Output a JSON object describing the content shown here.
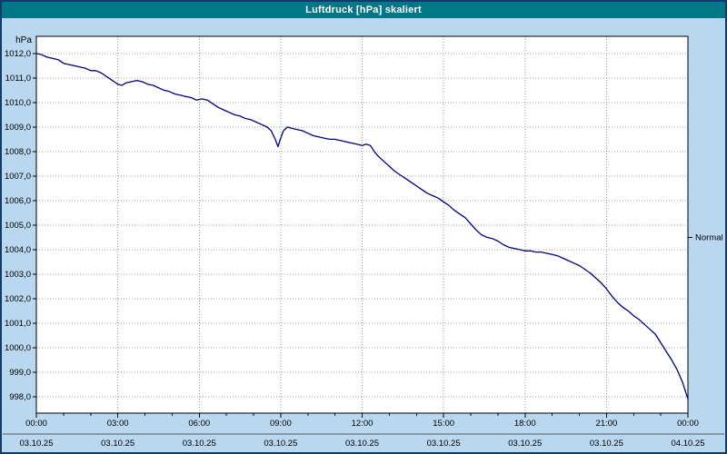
{
  "window": {
    "title": "Luftdruck [hPa] skaliert"
  },
  "colors": {
    "window_bg": "#b9d7ee",
    "border": "#123a6d",
    "titlebar_bg": "#007887",
    "titlebar_text": "#ffffff",
    "plot_bg": "#ffffff",
    "plot_border": "#000000",
    "grid": "#9b9b9b",
    "axis_text": "#000000",
    "line": "#000080"
  },
  "chart_data": {
    "type": "line",
    "title": "Luftdruck [hPa] skaliert",
    "grid": true,
    "y_axis": {
      "label": "hPa",
      "ylim": [
        997.33,
        1012.7
      ],
      "ticks": [
        {
          "value": 1012,
          "label": "1012,0"
        },
        {
          "value": 1011,
          "label": "1011,0"
        },
        {
          "value": 1010,
          "label": "1010,0"
        },
        {
          "value": 1009,
          "label": "1009,0"
        },
        {
          "value": 1008,
          "label": "1008,0"
        },
        {
          "value": 1007,
          "label": "1007,0"
        },
        {
          "value": 1006,
          "label": "1006,0"
        },
        {
          "value": 1005,
          "label": "1005,0"
        },
        {
          "value": 1004,
          "label": "1004,0"
        },
        {
          "value": 1003,
          "label": "1003,0"
        },
        {
          "value": 1002,
          "label": "1002,0"
        },
        {
          "value": 1001,
          "label": "1001,0"
        },
        {
          "value": 1000,
          "label": "1000,0"
        },
        {
          "value": 999,
          "label": "999,0"
        },
        {
          "value": 998,
          "label": "998,0"
        }
      ]
    },
    "x_axis": {
      "xlim_hours": [
        0,
        24
      ],
      "minor_step_hours": 1,
      "major_ticks": [
        {
          "hour": 0,
          "time": "00:00",
          "date": "03.10.25"
        },
        {
          "hour": 3,
          "time": "03:00",
          "date": "03.10.25"
        },
        {
          "hour": 6,
          "time": "06:00",
          "date": "03.10.25"
        },
        {
          "hour": 9,
          "time": "09:00",
          "date": "03.10.25"
        },
        {
          "hour": 12,
          "time": "12:00",
          "date": "03.10.25"
        },
        {
          "hour": 15,
          "time": "15:00",
          "date": "03.10.25"
        },
        {
          "hour": 18,
          "time": "18:00",
          "date": "03.10.25"
        },
        {
          "hour": 21,
          "time": "21:00",
          "date": "03.10.25"
        },
        {
          "hour": 24,
          "time": "00:00",
          "date": "04.10.25"
        }
      ]
    },
    "series": [
      {
        "name": "Luftdruck",
        "color": "#000080",
        "points": [
          [
            0.0,
            1012.0
          ],
          [
            0.2,
            1011.95
          ],
          [
            0.4,
            1011.85
          ],
          [
            0.6,
            1011.8
          ],
          [
            0.8,
            1011.75
          ],
          [
            1.0,
            1011.6
          ],
          [
            1.2,
            1011.55
          ],
          [
            1.4,
            1011.5
          ],
          [
            1.6,
            1011.45
          ],
          [
            1.8,
            1011.4
          ],
          [
            2.0,
            1011.3
          ],
          [
            2.2,
            1011.3
          ],
          [
            2.4,
            1011.2
          ],
          [
            2.6,
            1011.05
          ],
          [
            2.8,
            1010.9
          ],
          [
            3.0,
            1010.75
          ],
          [
            3.15,
            1010.7
          ],
          [
            3.3,
            1010.8
          ],
          [
            3.5,
            1010.85
          ],
          [
            3.7,
            1010.9
          ],
          [
            3.9,
            1010.85
          ],
          [
            4.1,
            1010.75
          ],
          [
            4.3,
            1010.7
          ],
          [
            4.5,
            1010.6
          ],
          [
            4.7,
            1010.5
          ],
          [
            4.9,
            1010.45
          ],
          [
            5.1,
            1010.35
          ],
          [
            5.3,
            1010.3
          ],
          [
            5.5,
            1010.25
          ],
          [
            5.7,
            1010.2
          ],
          [
            5.9,
            1010.1
          ],
          [
            6.1,
            1010.15
          ],
          [
            6.3,
            1010.1
          ],
          [
            6.5,
            1009.95
          ],
          [
            6.7,
            1009.8
          ],
          [
            6.9,
            1009.7
          ],
          [
            7.1,
            1009.6
          ],
          [
            7.3,
            1009.5
          ],
          [
            7.5,
            1009.45
          ],
          [
            7.7,
            1009.35
          ],
          [
            7.9,
            1009.3
          ],
          [
            8.1,
            1009.2
          ],
          [
            8.3,
            1009.1
          ],
          [
            8.5,
            1009.0
          ],
          [
            8.65,
            1008.85
          ],
          [
            8.8,
            1008.5
          ],
          [
            8.9,
            1008.2
          ],
          [
            9.0,
            1008.55
          ],
          [
            9.1,
            1008.85
          ],
          [
            9.25,
            1009.0
          ],
          [
            9.4,
            1008.95
          ],
          [
            9.6,
            1008.9
          ],
          [
            9.8,
            1008.85
          ],
          [
            10.0,
            1008.75
          ],
          [
            10.2,
            1008.65
          ],
          [
            10.4,
            1008.6
          ],
          [
            10.6,
            1008.55
          ],
          [
            10.8,
            1008.5
          ],
          [
            11.0,
            1008.5
          ],
          [
            11.2,
            1008.45
          ],
          [
            11.4,
            1008.4
          ],
          [
            11.6,
            1008.35
          ],
          [
            11.8,
            1008.3
          ],
          [
            12.0,
            1008.25
          ],
          [
            12.15,
            1008.3
          ],
          [
            12.3,
            1008.25
          ],
          [
            12.45,
            1008.0
          ],
          [
            12.6,
            1007.8
          ],
          [
            12.8,
            1007.6
          ],
          [
            13.0,
            1007.4
          ],
          [
            13.2,
            1007.2
          ],
          [
            13.4,
            1007.05
          ],
          [
            13.6,
            1006.9
          ],
          [
            13.8,
            1006.75
          ],
          [
            14.0,
            1006.6
          ],
          [
            14.2,
            1006.45
          ],
          [
            14.4,
            1006.3
          ],
          [
            14.6,
            1006.2
          ],
          [
            14.8,
            1006.1
          ],
          [
            15.0,
            1005.95
          ],
          [
            15.2,
            1005.8
          ],
          [
            15.4,
            1005.6
          ],
          [
            15.6,
            1005.45
          ],
          [
            15.8,
            1005.3
          ],
          [
            16.0,
            1005.05
          ],
          [
            16.2,
            1004.8
          ],
          [
            16.4,
            1004.6
          ],
          [
            16.6,
            1004.5
          ],
          [
            16.8,
            1004.45
          ],
          [
            17.0,
            1004.35
          ],
          [
            17.2,
            1004.2
          ],
          [
            17.4,
            1004.1
          ],
          [
            17.6,
            1004.05
          ],
          [
            17.8,
            1004.0
          ],
          [
            18.0,
            1003.95
          ],
          [
            18.2,
            1003.95
          ],
          [
            18.4,
            1003.9
          ],
          [
            18.6,
            1003.9
          ],
          [
            18.8,
            1003.85
          ],
          [
            19.0,
            1003.8
          ],
          [
            19.2,
            1003.75
          ],
          [
            19.4,
            1003.65
          ],
          [
            19.6,
            1003.55
          ],
          [
            19.8,
            1003.45
          ],
          [
            20.0,
            1003.35
          ],
          [
            20.2,
            1003.2
          ],
          [
            20.4,
            1003.05
          ],
          [
            20.6,
            1002.85
          ],
          [
            20.8,
            1002.65
          ],
          [
            21.0,
            1002.4
          ],
          [
            21.2,
            1002.1
          ],
          [
            21.4,
            1001.85
          ],
          [
            21.6,
            1001.65
          ],
          [
            21.8,
            1001.5
          ],
          [
            22.0,
            1001.3
          ],
          [
            22.2,
            1001.15
          ],
          [
            22.4,
            1000.95
          ],
          [
            22.6,
            1000.75
          ],
          [
            22.8,
            1000.55
          ],
          [
            23.0,
            1000.2
          ],
          [
            23.2,
            999.85
          ],
          [
            23.4,
            999.5
          ],
          [
            23.6,
            999.1
          ],
          [
            23.8,
            998.6
          ],
          [
            23.9,
            998.25
          ],
          [
            24.0,
            997.9
          ]
        ]
      }
    ],
    "annotations": [
      {
        "label": "Normal",
        "value": 1004.5,
        "side": "right"
      }
    ]
  }
}
